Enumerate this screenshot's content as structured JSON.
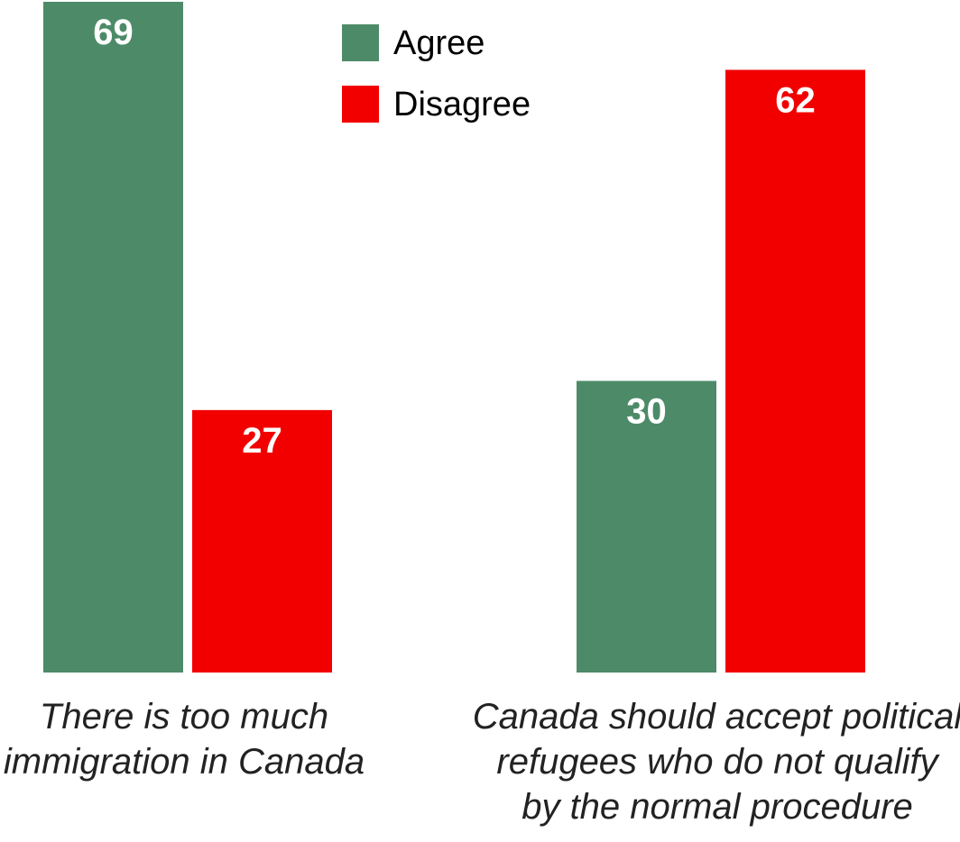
{
  "chart_data": {
    "type": "bar",
    "categories": [
      [
        "There is too much",
        "immigration in Canada"
      ],
      [
        "Canada should accept political",
        "refugees who do not qualify",
        "by the normal procedure"
      ]
    ],
    "series": [
      {
        "name": "Agree",
        "color": "#4d8b68",
        "values": [
          69,
          30
        ]
      },
      {
        "name": "Disagree",
        "color": "#f20000",
        "values": [
          27,
          62
        ]
      }
    ],
    "ylim": [
      0,
      69
    ],
    "grid": false,
    "legend_position": "top-center",
    "title": "",
    "xlabel": "",
    "ylabel": ""
  }
}
